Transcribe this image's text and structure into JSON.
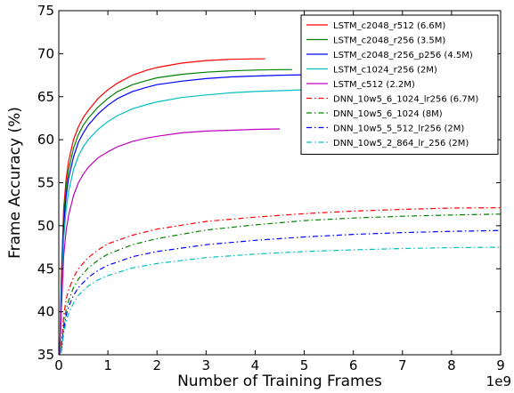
{
  "chart_data": {
    "type": "line",
    "title": "",
    "xlabel": "Number of Training Frames",
    "ylabel": "Frame Accuracy (%)",
    "x_multiplier_label": "1e9",
    "xlim": [
      0,
      9
    ],
    "ylim": [
      35,
      75
    ],
    "x_ticks": [
      0,
      1,
      2,
      3,
      4,
      5,
      6,
      7,
      8,
      9
    ],
    "y_ticks": [
      35,
      40,
      45,
      50,
      55,
      60,
      65,
      70,
      75
    ],
    "x_unit_multiplier": 1000000000,
    "grid": false,
    "legend_position": "top-right",
    "series": [
      {
        "name": "LSTM_c2048_r512 (6.6M)",
        "color": "#ff0000",
        "style": "solid",
        "x": [
          0.02,
          0.05,
          0.1,
          0.15,
          0.2,
          0.3,
          0.4,
          0.5,
          0.6,
          0.8,
          1.0,
          1.2,
          1.5,
          1.8,
          2.0,
          2.5,
          3.0,
          3.5,
          4.0,
          4.2
        ],
        "y": [
          35,
          44,
          52,
          55.5,
          57.5,
          60,
          61.5,
          62.6,
          63.4,
          64.8,
          65.8,
          66.6,
          67.5,
          68.1,
          68.4,
          68.9,
          69.2,
          69.35,
          69.4,
          69.4
        ]
      },
      {
        "name": "LSTM_c2048_r256 (3.5M)",
        "color": "#008000",
        "style": "solid",
        "x": [
          0.02,
          0.05,
          0.1,
          0.15,
          0.2,
          0.3,
          0.4,
          0.5,
          0.6,
          0.8,
          1.0,
          1.2,
          1.5,
          1.8,
          2.0,
          2.5,
          3.0,
          3.5,
          4.0,
          4.5,
          4.75
        ],
        "y": [
          35,
          43,
          51,
          54.5,
          56.5,
          59,
          60.6,
          61.7,
          62.5,
          63.8,
          64.8,
          65.6,
          66.4,
          66.9,
          67.2,
          67.6,
          67.85,
          68.0,
          68.1,
          68.15,
          68.15
        ]
      },
      {
        "name": "LSTM_c2048_r256_p256 (4.5M)",
        "color": "#0000ff",
        "style": "solid",
        "x": [
          0.02,
          0.05,
          0.1,
          0.15,
          0.2,
          0.3,
          0.4,
          0.5,
          0.6,
          0.8,
          1.0,
          1.2,
          1.5,
          1.8,
          2.0,
          2.5,
          3.0,
          3.5,
          4.0,
          4.5,
          5.0,
          5.25
        ],
        "y": [
          35,
          42,
          50,
          53.5,
          55.5,
          58,
          59.7,
          60.8,
          61.7,
          63.0,
          64.0,
          64.8,
          65.6,
          66.1,
          66.4,
          66.8,
          67.1,
          67.3,
          67.4,
          67.5,
          67.55,
          67.55
        ]
      },
      {
        "name": "LSTM_c1024_r256 (2M)",
        "color": "#00bfbf",
        "style": "solid",
        "x": [
          0.02,
          0.05,
          0.1,
          0.15,
          0.2,
          0.3,
          0.4,
          0.5,
          0.6,
          0.8,
          1.0,
          1.2,
          1.5,
          1.8,
          2.0,
          2.5,
          3.0,
          3.5,
          4.0,
          4.5,
          5.0,
          5.25
        ],
        "y": [
          35,
          41,
          48.5,
          52,
          54,
          56.5,
          58.1,
          59.2,
          60.0,
          61.2,
          62.1,
          62.8,
          63.6,
          64.1,
          64.4,
          64.9,
          65.2,
          65.45,
          65.6,
          65.7,
          65.8,
          65.8
        ]
      },
      {
        "name": "LSTM_c512 (2.2M)",
        "color": "#bf00bf",
        "style": "solid",
        "x": [
          0.02,
          0.05,
          0.1,
          0.15,
          0.2,
          0.3,
          0.4,
          0.5,
          0.6,
          0.8,
          1.0,
          1.2,
          1.5,
          1.8,
          2.0,
          2.5,
          3.0,
          3.5,
          4.0,
          4.5
        ],
        "y": [
          35,
          40,
          46.5,
          49.5,
          51.2,
          53.5,
          55.0,
          56.0,
          56.8,
          57.9,
          58.6,
          59.2,
          59.8,
          60.2,
          60.4,
          60.8,
          61.0,
          61.1,
          61.2,
          61.25
        ]
      },
      {
        "name": "DNN_10w5_6_1024_lr256 (6.7M)",
        "color": "#ff0000",
        "style": "dashdot",
        "x": [
          0.05,
          0.1,
          0.15,
          0.2,
          0.3,
          0.4,
          0.6,
          0.8,
          1.0,
          1.5,
          2.0,
          3.0,
          4.0,
          5.0,
          6.0,
          7.0,
          8.0,
          9.0
        ],
        "y": [
          36,
          39.5,
          41.5,
          42.5,
          44.0,
          45.0,
          46.3,
          47.2,
          47.9,
          48.9,
          49.6,
          50.5,
          51.0,
          51.4,
          51.7,
          51.9,
          52.05,
          52.1
        ]
      },
      {
        "name": "DNN_10w5_6_1024 (8M)",
        "color": "#008000",
        "style": "dashdot",
        "x": [
          0.05,
          0.1,
          0.15,
          0.2,
          0.3,
          0.4,
          0.6,
          0.8,
          1.0,
          1.5,
          2.0,
          3.0,
          4.0,
          5.0,
          6.0,
          7.0,
          8.0,
          9.0
        ],
        "y": [
          35.5,
          38.5,
          40.3,
          41.3,
          42.8,
          43.8,
          45.1,
          46.0,
          46.7,
          47.8,
          48.5,
          49.5,
          50.1,
          50.6,
          50.9,
          51.1,
          51.25,
          51.35
        ]
      },
      {
        "name": "DNN_10w5_5_512_lr256 (2M)",
        "color": "#0000ff",
        "style": "dashdot",
        "x": [
          0.05,
          0.1,
          0.15,
          0.2,
          0.3,
          0.4,
          0.6,
          0.8,
          1.0,
          1.5,
          2.0,
          3.0,
          4.0,
          5.0,
          6.0,
          7.0,
          8.0,
          9.0
        ],
        "y": [
          35.3,
          38.0,
          39.6,
          40.6,
          41.9,
          42.8,
          44.0,
          44.8,
          45.4,
          46.4,
          47.0,
          47.8,
          48.3,
          48.7,
          49.0,
          49.2,
          49.35,
          49.45
        ]
      },
      {
        "name": "DNN_10w5_2_864_lr_256 (2M)",
        "color": "#00bfbf",
        "style": "dashdot",
        "x": [
          0.05,
          0.1,
          0.15,
          0.2,
          0.3,
          0.4,
          0.6,
          0.8,
          1.0,
          1.5,
          2.0,
          3.0,
          4.0,
          5.0,
          6.0,
          7.0,
          8.0,
          9.0
        ],
        "y": [
          35.2,
          37.5,
          38.9,
          39.8,
          41.0,
          41.9,
          43.0,
          43.7,
          44.2,
          45.1,
          45.6,
          46.3,
          46.7,
          47.0,
          47.2,
          47.35,
          47.45,
          47.5
        ]
      }
    ]
  }
}
